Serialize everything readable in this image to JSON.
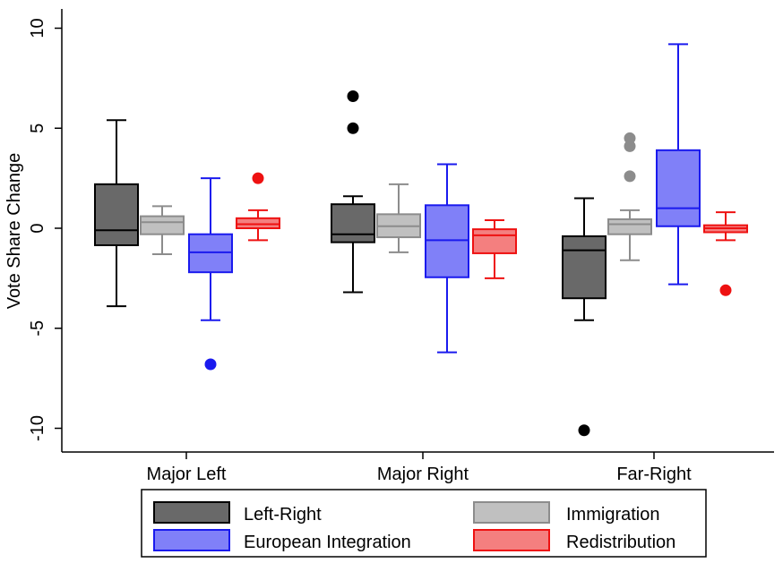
{
  "chart_data": {
    "type": "boxplot",
    "title": "",
    "xlabel": "",
    "ylabel": "Vote Share Change",
    "ylim": [
      -11.2,
      11.0
    ],
    "yticks": [
      10,
      5,
      0,
      -5,
      -10
    ],
    "ytick_labels": [
      "10",
      "5",
      "0",
      "-5",
      "-10"
    ],
    "grid": false,
    "categories": [
      "Major Left",
      "Major Right",
      "Far-Right"
    ],
    "series": [
      {
        "name": "Left-Right",
        "fill": "#696969",
        "stroke": "#000000",
        "boxes": [
          {
            "whisker_low": -3.9,
            "q1": -0.85,
            "median": -0.1,
            "q3": 2.2,
            "whisker_high": 5.4,
            "outliers": []
          },
          {
            "whisker_low": -3.2,
            "q1": -0.7,
            "median": -0.3,
            "q3": 1.2,
            "whisker_high": 1.6,
            "outliers": [
              6.6,
              5.0
            ]
          },
          {
            "whisker_low": -4.6,
            "q1": -3.5,
            "median": -1.1,
            "q3": -0.4,
            "whisker_high": 1.5,
            "outliers": [
              -10.1
            ]
          }
        ]
      },
      {
        "name": "Immigration",
        "fill": "#c0c0c0",
        "stroke": "#8c8c8c",
        "boxes": [
          {
            "whisker_low": -1.3,
            "q1": -0.3,
            "median": 0.3,
            "q3": 0.6,
            "whisker_high": 1.1,
            "outliers": []
          },
          {
            "whisker_low": -1.2,
            "q1": -0.45,
            "median": 0.1,
            "q3": 0.7,
            "whisker_high": 2.2,
            "outliers": []
          },
          {
            "whisker_low": -1.6,
            "q1": -0.3,
            "median": 0.2,
            "q3": 0.45,
            "whisker_high": 0.9,
            "outliers": [
              4.5,
              4.1,
              2.6
            ]
          }
        ]
      },
      {
        "name": "European Integration",
        "fill": "#8080f8",
        "stroke": "#1a1aee",
        "boxes": [
          {
            "whisker_low": -4.6,
            "q1": -2.2,
            "median": -1.2,
            "q3": -0.3,
            "whisker_high": 2.5,
            "outliers": [
              -6.8
            ]
          },
          {
            "whisker_low": -6.2,
            "q1": -2.45,
            "median": -0.6,
            "q3": 1.15,
            "whisker_high": 3.2,
            "outliers": []
          },
          {
            "whisker_low": -2.8,
            "q1": 0.1,
            "median": 1.0,
            "q3": 3.9,
            "whisker_high": 9.2,
            "outliers": []
          }
        ]
      },
      {
        "name": "Redistribution",
        "fill": "#f47f7f",
        "stroke": "#ee1111",
        "boxes": [
          {
            "whisker_low": -0.6,
            "q1": 0.0,
            "median": 0.2,
            "q3": 0.5,
            "whisker_high": 0.9,
            "outliers": [
              2.5
            ]
          },
          {
            "whisker_low": -2.5,
            "q1": -1.25,
            "median": -0.35,
            "q3": -0.05,
            "whisker_high": 0.4,
            "outliers": []
          },
          {
            "whisker_low": -0.6,
            "q1": -0.2,
            "median": 0.0,
            "q3": 0.15,
            "whisker_high": 0.8,
            "outliers": [
              -3.1
            ]
          }
        ]
      }
    ],
    "legend": {
      "placement": "bottom",
      "items": [
        "Left-Right",
        "Immigration",
        "European Integration",
        "Redistribution"
      ]
    }
  }
}
